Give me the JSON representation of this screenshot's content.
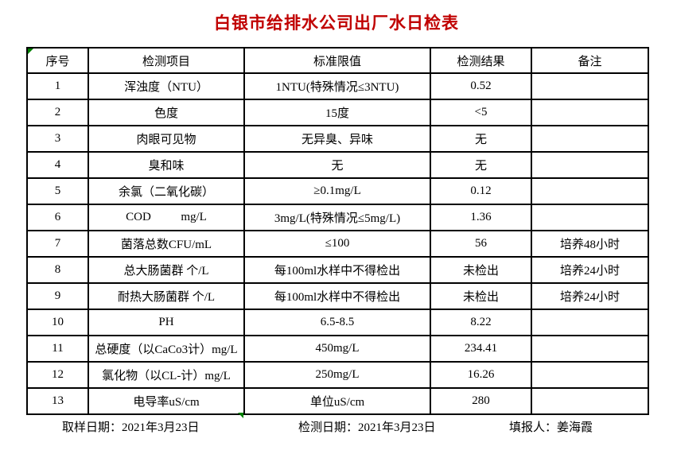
{
  "title": "白银市给排水公司出厂水日检表",
  "colors": {
    "title": "#c00000",
    "marker": "#008000",
    "text": "#000000",
    "background": "#ffffff"
  },
  "table": {
    "headers": [
      "序号",
      "检测项目",
      "标准限值",
      "检测结果",
      "备注"
    ],
    "rows": [
      [
        "1",
        "浑浊度（NTU）",
        "1NTU(特殊情况≤3NTU)",
        "0.52",
        ""
      ],
      [
        "2",
        "色度",
        "15度",
        "<5",
        ""
      ],
      [
        "3",
        "肉眼可见物",
        "无异臭、异味",
        "无",
        ""
      ],
      [
        "4",
        "臭和味",
        "无",
        "无",
        ""
      ],
      [
        "5",
        "余氯（二氧化碳）",
        "≥0.1mg/L",
        "0.12",
        ""
      ],
      [
        "6",
        "COD          mg/L",
        "3mg/L(特殊情况≤5mg/L)",
        "1.36",
        ""
      ],
      [
        "7",
        "菌落总数CFU/mL",
        "≤100",
        "56",
        "培养48小时"
      ],
      [
        "8",
        "总大肠菌群 个/L",
        "每100ml水样中不得检出",
        "未检出",
        "培养24小时"
      ],
      [
        "9",
        "耐热大肠菌群 个/L",
        "每100ml水样中不得检出",
        "未检出",
        "培养24小时"
      ],
      [
        "10",
        "PH",
        "6.5-8.5",
        "8.22",
        ""
      ],
      [
        "11",
        "总硬度（以CaCo3计）mg/L",
        "450mg/L",
        "234.41",
        ""
      ],
      [
        "12",
        "氯化物（以CL-计）mg/L",
        "250mg/L",
        "16.26",
        ""
      ],
      [
        "13",
        "电导率uS/cm",
        "单位uS/cm",
        "280",
        ""
      ]
    ]
  },
  "footer": {
    "sampling_date": "取样日期：2021年3月23日",
    "test_date": "检测日期：2021年3月23日",
    "reporter": "填报人：姜海霞"
  }
}
